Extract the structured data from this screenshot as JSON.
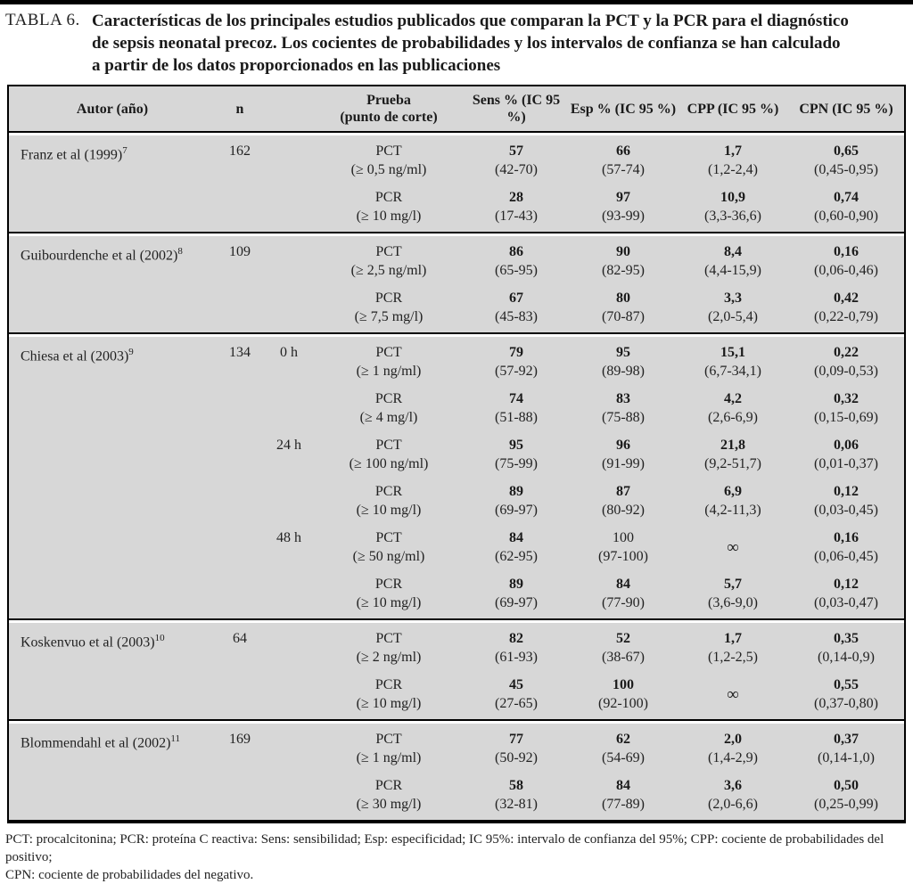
{
  "title": {
    "label": "TABLA 6.",
    "lines": [
      "Características de los principales estudios publicados que comparan la PCT y la PCR para el diagnóstico",
      "de sepsis neonatal precoz. Los cocientes de probabilidades y los intervalos de confianza se han calculado",
      "a partir de los datos proporcionados en las publicaciones"
    ]
  },
  "table": {
    "headers": {
      "autor": "Autor (año)",
      "n": "n",
      "time": "",
      "prueba_line1": "Prueba",
      "prueba_line2": "(punto de corte)",
      "sens": "Sens % (IC 95 %)",
      "esp": "Esp % (IC 95 %)",
      "cpp": "CPP (IC 95 %)",
      "cpn": "CPN (IC 95 %)"
    },
    "groups": [
      {
        "author": "Franz et al (1999)",
        "ref": "7",
        "n": "162",
        "rows": [
          {
            "time": "",
            "test": "PCT",
            "cutoff": "(≥ 0,5 ng/ml)",
            "sens": {
              "v": "57",
              "ci": "(42-70)"
            },
            "esp": {
              "v": "66",
              "ci": "(57-74)"
            },
            "cpp": {
              "v": "1,7",
              "ci": "(1,2-2,4)"
            },
            "cpn": {
              "v": "0,65",
              "ci": "(0,45-0,95)"
            }
          },
          {
            "time": "",
            "test": "PCR",
            "cutoff": "(≥ 10 mg/l)",
            "sens": {
              "v": "28",
              "ci": "(17-43)"
            },
            "esp": {
              "v": "97",
              "ci": "(93-99)"
            },
            "cpp": {
              "v": "10,9",
              "ci": "(3,3-36,6)"
            },
            "cpn": {
              "v": "0,74",
              "ci": "(0,60-0,90)"
            }
          }
        ]
      },
      {
        "author": "Guibourdenche et al (2002)",
        "ref": "8",
        "n": "109",
        "rows": [
          {
            "time": "",
            "test": "PCT",
            "cutoff": "(≥ 2,5 ng/ml)",
            "sens": {
              "v": "86",
              "ci": "(65-95)"
            },
            "esp": {
              "v": "90",
              "ci": "(82-95)"
            },
            "cpp": {
              "v": "8,4",
              "ci": "(4,4-15,9)"
            },
            "cpn": {
              "v": "0,16",
              "ci": "(0,06-0,46)"
            }
          },
          {
            "time": "",
            "test": "PCR",
            "cutoff": "(≥ 7,5 mg/l)",
            "sens": {
              "v": "67",
              "ci": "(45-83)"
            },
            "esp": {
              "v": "80",
              "ci": "(70-87)"
            },
            "cpp": {
              "v": "3,3",
              "ci": "(2,0-5,4)"
            },
            "cpn": {
              "v": "0,42",
              "ci": "(0,22-0,79)"
            }
          }
        ]
      },
      {
        "author": "Chiesa et al (2003)",
        "ref": "9",
        "n": "134",
        "rows": [
          {
            "time": "0 h",
            "test": "PCT",
            "cutoff": "(≥ 1 ng/ml)",
            "sens": {
              "v": "79",
              "ci": "(57-92)"
            },
            "esp": {
              "v": "95",
              "ci": "(89-98)"
            },
            "cpp": {
              "v": "15,1",
              "ci": "(6,7-34,1)"
            },
            "cpn": {
              "v": "0,22",
              "ci": "(0,09-0,53)"
            }
          },
          {
            "time": "",
            "test": "PCR",
            "cutoff": "(≥ 4 mg/l)",
            "sens": {
              "v": "74",
              "ci": "(51-88)"
            },
            "esp": {
              "v": "83",
              "ci": "(75-88)"
            },
            "cpp": {
              "v": "4,2",
              "ci": "(2,6-6,9)"
            },
            "cpn": {
              "v": "0,32",
              "ci": "(0,15-0,69)"
            }
          },
          {
            "time": "24 h",
            "test": "PCT",
            "cutoff": "(≥ 100 ng/ml)",
            "sens": {
              "v": "95",
              "ci": "(75-99)"
            },
            "esp": {
              "v": "96",
              "ci": "(91-99)"
            },
            "cpp": {
              "v": "21,8",
              "ci": "(9,2-51,7)"
            },
            "cpn": {
              "v": "0,06",
              "ci": "(0,01-0,37)"
            }
          },
          {
            "time": "",
            "test": "PCR",
            "cutoff": "(≥ 10 mg/l)",
            "sens": {
              "v": "89",
              "ci": "(69-97)"
            },
            "esp": {
              "v": "87",
              "ci": "(80-92)"
            },
            "cpp": {
              "v": "6,9",
              "ci": "(4,2-11,3)"
            },
            "cpn": {
              "v": "0,12",
              "ci": "(0,03-0,45)"
            }
          },
          {
            "time": "48 h",
            "test": "PCT",
            "cutoff": "(≥ 50 ng/ml)",
            "sens": {
              "v": "84",
              "ci": "(62-95)"
            },
            "esp": {
              "v": "100",
              "ci": "(97-100)",
              "bold": false
            },
            "cpp": {
              "v": "∞",
              "ci": ""
            },
            "cpn": {
              "v": "0,16",
              "ci": "(0,06-0,45)"
            }
          },
          {
            "time": "",
            "test": "PCR",
            "cutoff": "(≥ 10 mg/l)",
            "sens": {
              "v": "89",
              "ci": "(69-97)"
            },
            "esp": {
              "v": "84",
              "ci": "(77-90)"
            },
            "cpp": {
              "v": "5,7",
              "ci": "(3,6-9,0)"
            },
            "cpn": {
              "v": "0,12",
              "ci": "(0,03-0,47)"
            }
          }
        ]
      },
      {
        "author": "Koskenvuo et al (2003)",
        "ref": "10",
        "n": "64",
        "rows": [
          {
            "time": "",
            "test": "PCT",
            "cutoff": "(≥ 2 ng/ml)",
            "sens": {
              "v": "82",
              "ci": "(61-93)"
            },
            "esp": {
              "v": "52",
              "ci": "(38-67)"
            },
            "cpp": {
              "v": "1,7",
              "ci": "(1,2-2,5)"
            },
            "cpn": {
              "v": "0,35",
              "ci": "(0,14-0,9)"
            }
          },
          {
            "time": "",
            "test": "PCR",
            "cutoff": "(≥ 10 mg/l)",
            "sens": {
              "v": "45",
              "ci": "(27-65)"
            },
            "esp": {
              "v": "100",
              "ci": "(92-100)"
            },
            "cpp": {
              "v": "∞",
              "ci": ""
            },
            "cpn": {
              "v": "0,55",
              "ci": "(0,37-0,80)"
            }
          }
        ]
      },
      {
        "author": "Blommendahl et al (2002)",
        "ref": "11",
        "n": "169",
        "rows": [
          {
            "time": "",
            "test": "PCT",
            "cutoff": "(≥ 1 ng/ml)",
            "sens": {
              "v": "77",
              "ci": "(50-92)"
            },
            "esp": {
              "v": "62",
              "ci": "(54-69)"
            },
            "cpp": {
              "v": "2,0",
              "ci": "(1,4-2,9)"
            },
            "cpn": {
              "v": "0,37",
              "ci": "(0,14-1,0)"
            }
          },
          {
            "time": "",
            "test": "PCR",
            "cutoff": "(≥ 30 mg/l)",
            "sens": {
              "v": "58",
              "ci": "(32-81)"
            },
            "esp": {
              "v": "84",
              "ci": "(77-89)"
            },
            "cpp": {
              "v": "3,6",
              "ci": "(2,0-6,6)"
            },
            "cpn": {
              "v": "0,50",
              "ci": "(0,25-0,99)"
            }
          }
        ]
      }
    ]
  },
  "footnote": [
    "PCT: procalcitonina; PCR: proteína C reactiva: Sens: sensibilidad; Esp: especificidad; IC 95%: intervalo de confianza del 95%; CPP: cociente de probabilidades del positivo;",
    "CPN: cociente de probabilidades del negativo."
  ]
}
